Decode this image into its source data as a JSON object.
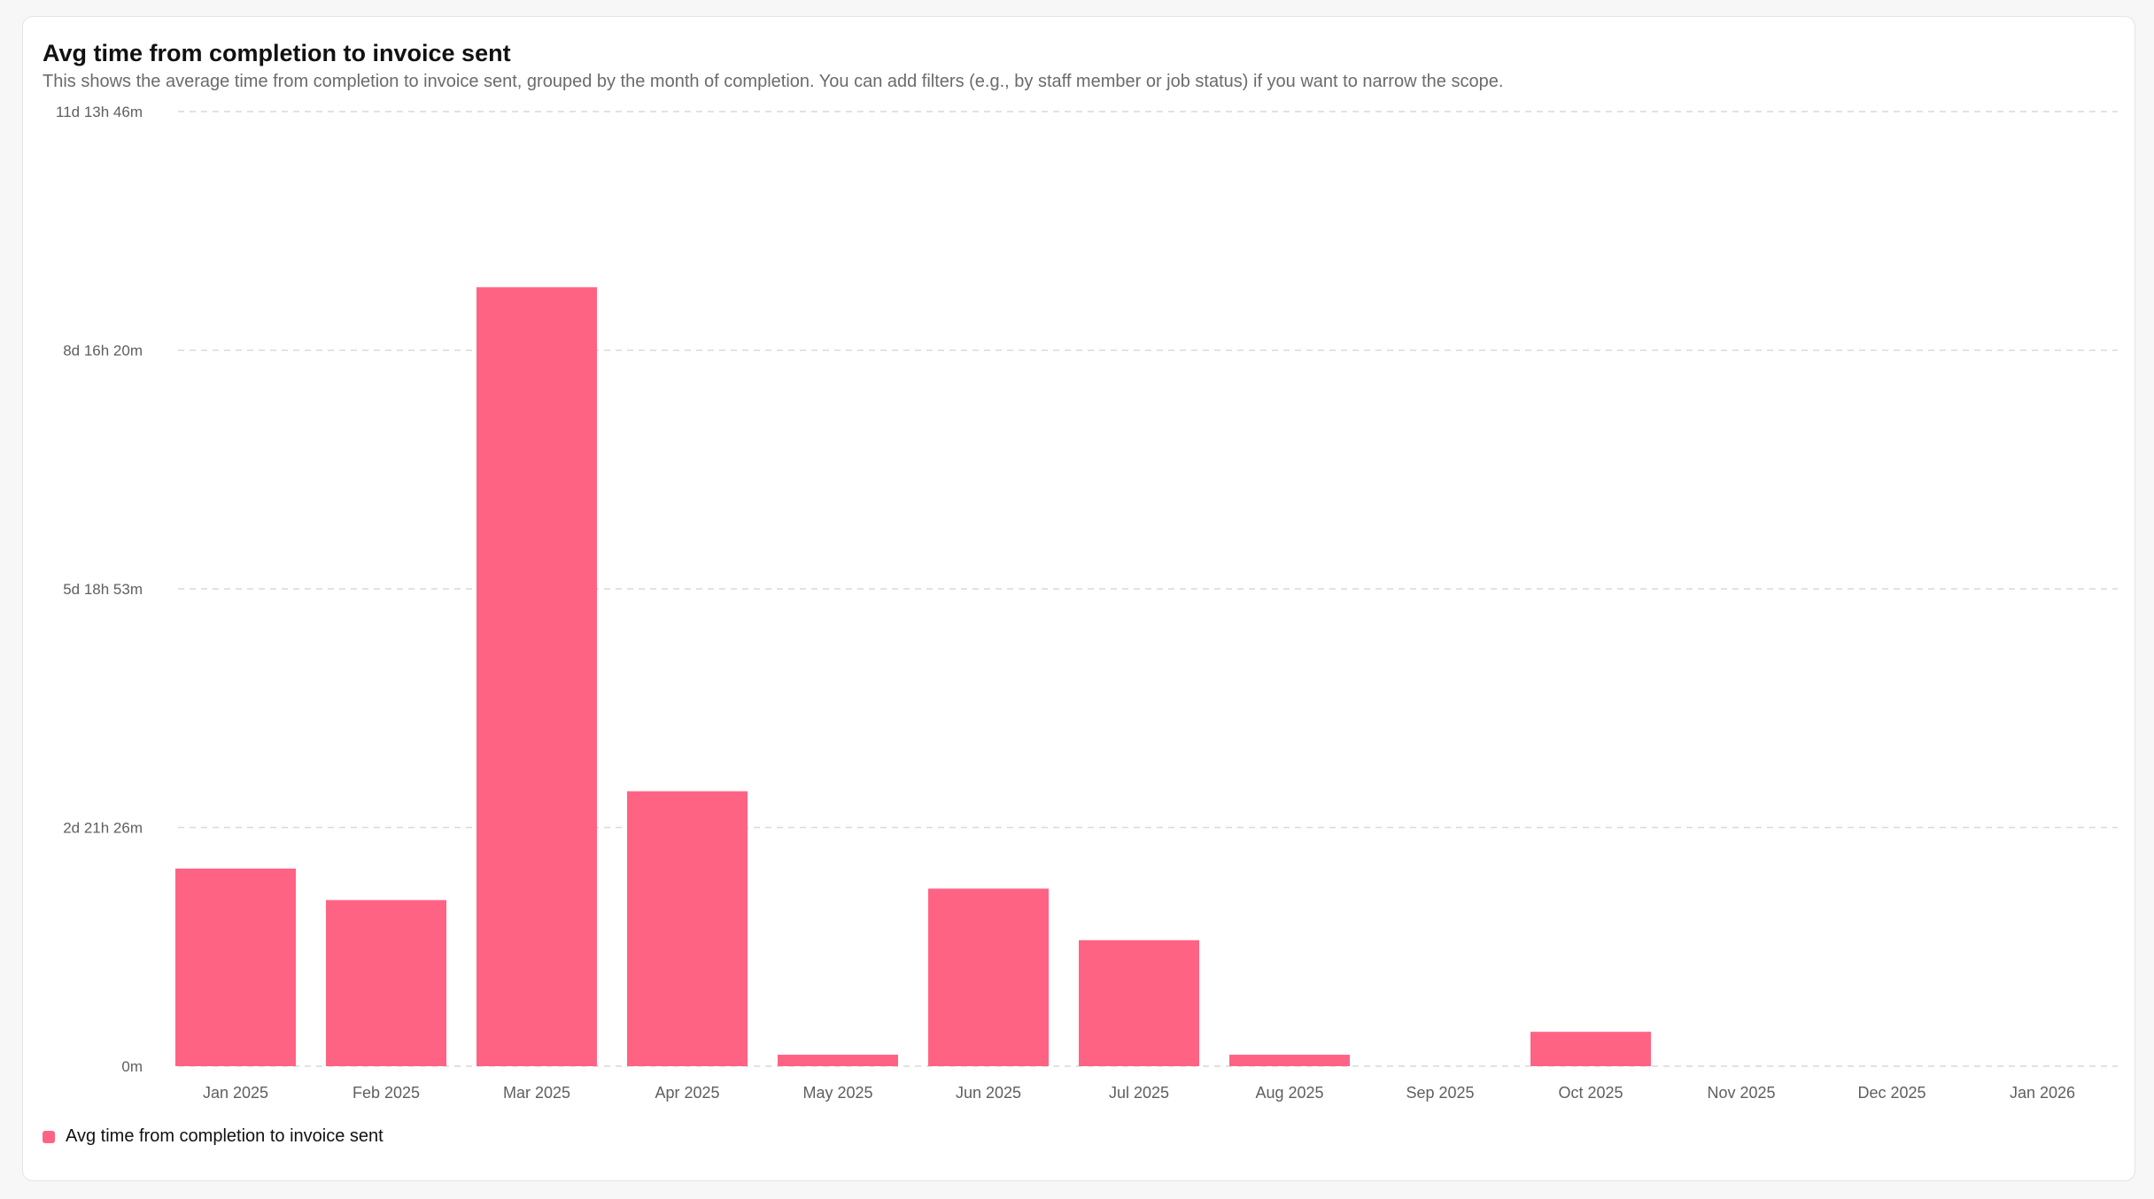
{
  "card": {
    "title": "Avg time from completion to invoice sent",
    "subtitle": "This shows the average time from completion to invoice sent, grouped by the month of completion. You can add filters (e.g., by staff member or job status) if you want to narrow the scope."
  },
  "colors": {
    "bar": "#ff6384",
    "grid": "#d9d9d9"
  },
  "chart_data": {
    "type": "bar",
    "title": "Avg time from completion to invoice sent",
    "categories": [
      "Jan 2025",
      "Feb 2025",
      "Mar 2025",
      "Apr 2025",
      "May 2025",
      "Jun 2025",
      "Jul 2025",
      "Aug 2025",
      "Sep 2025",
      "Oct 2025",
      "Nov 2025",
      "Dec 2025",
      "Jan 2026"
    ],
    "series": [
      {
        "name": "Avg time from completion to invoice sent",
        "unit": "minutes",
        "values": [
          3450,
          2900,
          13600,
          4800,
          200,
          3100,
          2200,
          200,
          0,
          600,
          0,
          0,
          0
        ]
      }
    ],
    "y_ticks": [
      {
        "value": 0,
        "label": "0m"
      },
      {
        "value": 4166,
        "label": "2d 21h 26m"
      },
      {
        "value": 8333,
        "label": "5d 18h 53m"
      },
      {
        "value": 12500,
        "label": "8d 16h 20m"
      },
      {
        "value": 16666,
        "label": "11d 13h 46m"
      }
    ],
    "ylim": [
      0,
      16666
    ],
    "grid": true,
    "legend": "bottom-left"
  }
}
